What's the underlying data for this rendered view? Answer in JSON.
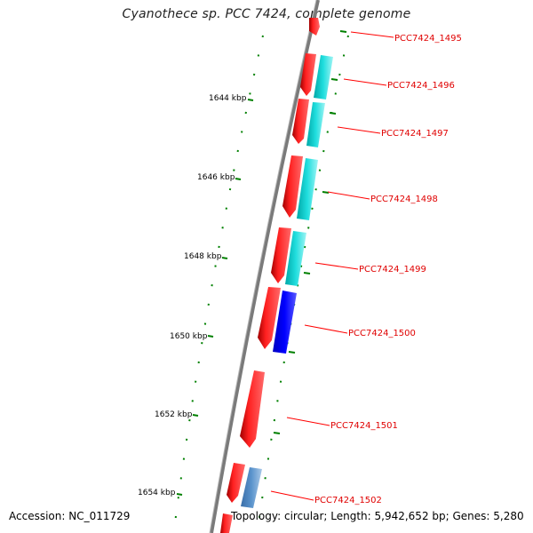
{
  "title": "Cyanothece sp. PCC 7424, complete genome",
  "accession": "Accession: NC_011729",
  "stats": "Topology: circular; Length: 5,942,652 bp; Genes: 5,280",
  "colors": {
    "backbone": "#808080",
    "gene_red": "#ff0000",
    "gene_cyan": "#00cccc",
    "gene_blue": "#0000ee",
    "gene_steelblue": "#4f86c0",
    "tick_green": "#008000",
    "label_red": "#e00000"
  },
  "scale_labels": [
    "1644 kbp",
    "1646 kbp",
    "1648 kbp",
    "1650 kbp",
    "1652 kbp",
    "1654 kbp"
  ],
  "gene_labels": [
    "PCC7424_1495",
    "PCC7424_1496",
    "PCC7424_1497",
    "PCC7424_1498",
    "PCC7424_1499",
    "PCC7424_1500",
    "PCC7424_1501",
    "PCC7424_1502"
  ]
}
